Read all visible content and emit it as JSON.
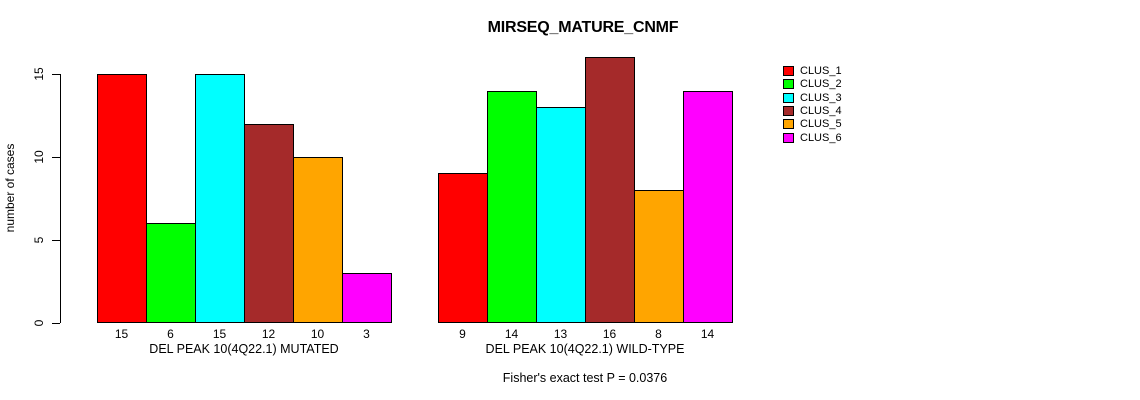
{
  "chart_data": {
    "type": "bar",
    "title": "MIRSEQ_MATURE_CNMF",
    "ylabel": "number of cases",
    "xlabel": "",
    "yticks": [
      0,
      5,
      10,
      15
    ],
    "ylim": [
      0,
      16
    ],
    "grid": false,
    "legend_position": "right",
    "annotation": "Fisher's exact test P = 0.0376",
    "clusters": [
      {
        "label": "CLUS_1",
        "color": "#FF0000"
      },
      {
        "label": "CLUS_2",
        "color": "#00FF00"
      },
      {
        "label": "CLUS_3",
        "color": "#00FFFF"
      },
      {
        "label": "CLUS_4",
        "color": "#A52A2A"
      },
      {
        "label": "CLUS_5",
        "color": "#FFA500"
      },
      {
        "label": "CLUS_6",
        "color": "#FF00FF"
      }
    ],
    "groups": [
      {
        "label": "DEL PEAK 10(4Q22.1) MUTATED",
        "values": [
          15,
          6,
          15,
          12,
          10,
          3
        ]
      },
      {
        "label": "DEL PEAK 10(4Q22.1) WILD-TYPE",
        "values": [
          9,
          14,
          13,
          16,
          8,
          14
        ]
      }
    ],
    "series": [
      {
        "name": "CLUS_1",
        "values": [
          15,
          9
        ]
      },
      {
        "name": "CLUS_2",
        "values": [
          6,
          14
        ]
      },
      {
        "name": "CLUS_3",
        "values": [
          15,
          13
        ]
      },
      {
        "name": "CLUS_4",
        "values": [
          12,
          16
        ]
      },
      {
        "name": "CLUS_5",
        "values": [
          10,
          8
        ]
      },
      {
        "name": "CLUS_6",
        "values": [
          3,
          14
        ]
      }
    ]
  }
}
